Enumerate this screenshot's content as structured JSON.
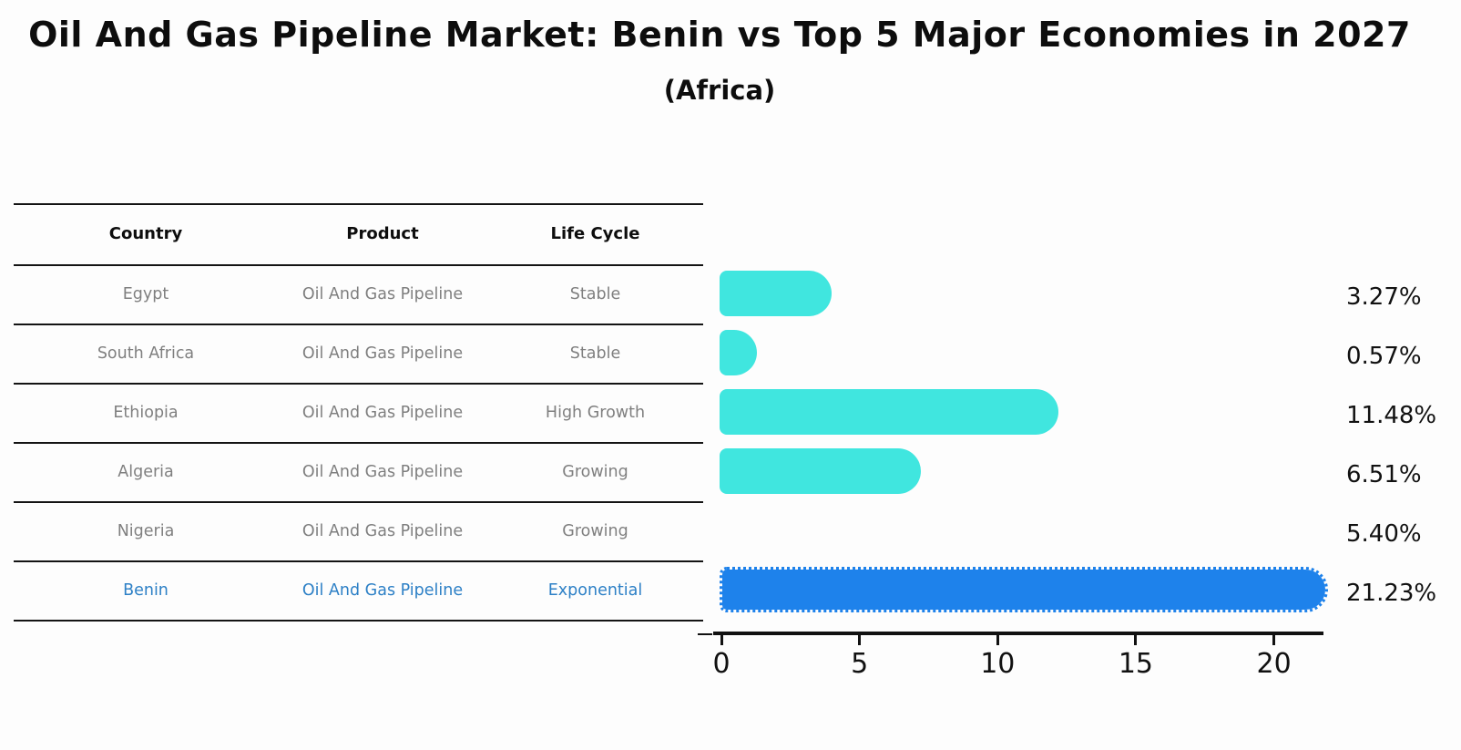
{
  "title": "Oil And Gas Pipeline Market: Benin vs Top 5 Major Economies in 2027",
  "subtitle": "(Africa)",
  "table": {
    "headers": {
      "country": "Country",
      "product": "Product",
      "life_cycle": "Life Cycle"
    },
    "rows": [
      {
        "country": "Egypt",
        "product": "Oil And Gas Pipeline",
        "life_cycle": "Stable",
        "highlight": false
      },
      {
        "country": "South Africa",
        "product": "Oil And Gas Pipeline",
        "life_cycle": "Stable",
        "highlight": false
      },
      {
        "country": "Ethiopia",
        "product": "Oil And Gas Pipeline",
        "life_cycle": "High Growth",
        "highlight": false
      },
      {
        "country": "Algeria",
        "product": "Oil And Gas Pipeline",
        "life_cycle": "Growing",
        "highlight": false
      },
      {
        "country": "Nigeria",
        "product": "Oil And Gas Pipeline",
        "life_cycle": "Growing",
        "highlight": false
      },
      {
        "country": "Benin",
        "product": "Oil And Gas Pipeline",
        "life_cycle": "Exponential",
        "highlight": true
      }
    ]
  },
  "chart_data": {
    "type": "bar",
    "orientation": "horizontal",
    "title": "Oil And Gas Pipeline Market: Benin vs Top 5 Major Economies in 2027 (Africa)",
    "categories": [
      "Egypt",
      "South Africa",
      "Ethiopia",
      "Algeria",
      "Nigeria",
      "Benin"
    ],
    "values": [
      3.27,
      0.57,
      11.48,
      6.51,
      5.4,
      21.23
    ],
    "labels": [
      "3.27%",
      "0.57%",
      "11.48%",
      "6.51%",
      "5.40%",
      "21.23%"
    ],
    "x_ticks": [
      0,
      5,
      10,
      15,
      20
    ],
    "xlim": [
      0,
      21.6
    ],
    "grid": false,
    "legend": "none",
    "unit": "percent",
    "highlight_index": 5,
    "bar_color": "#40e6df",
    "highlight_bar_color": "#1e82eb",
    "highlight_text_color": "#2d80c6",
    "row_text_color": "#7f7f7f"
  }
}
